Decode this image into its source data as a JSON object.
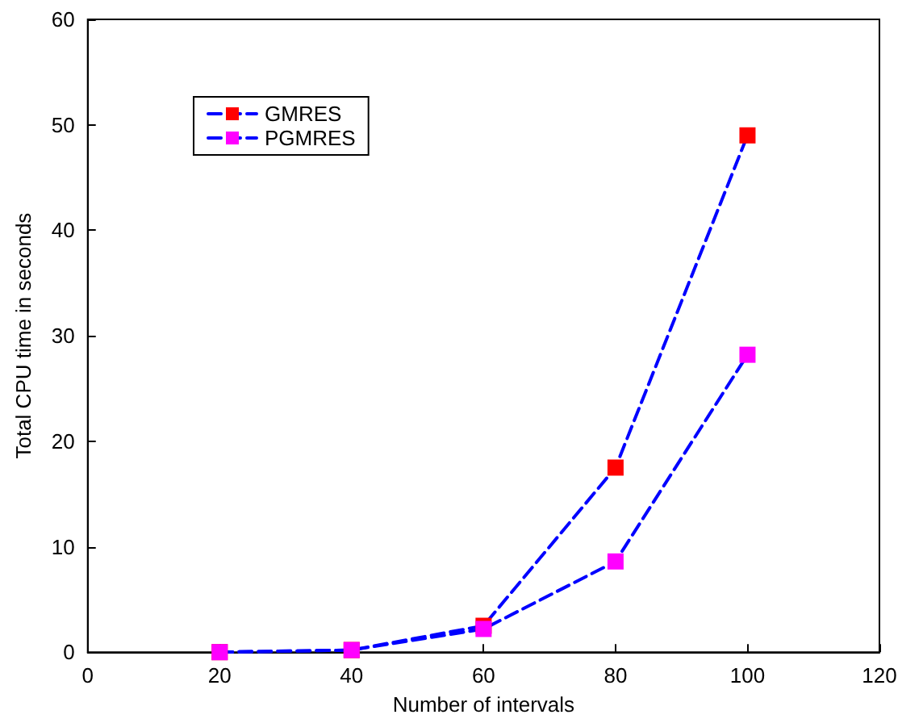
{
  "chart_data": {
    "type": "line",
    "xlabel": "Number of intervals",
    "ylabel": "Total CPU time in seconds",
    "x": [
      20,
      40,
      60,
      80,
      100
    ],
    "series": [
      {
        "name": "GMRES",
        "color": "#ff0000",
        "values": [
          0,
          0.2,
          2.5,
          17.5,
          49
        ]
      },
      {
        "name": "PGMRES",
        "color": "#ff00ff",
        "values": [
          0,
          0.2,
          2.2,
          8.6,
          28.2
        ]
      }
    ],
    "xlim": [
      0,
      120
    ],
    "xticks": [
      0,
      20,
      40,
      60,
      80,
      100,
      120
    ],
    "ylim": [
      0,
      60
    ],
    "yticks": [
      0,
      10,
      20,
      30,
      40,
      50,
      60
    ],
    "grid": false,
    "legend": "top left",
    "marker": "square",
    "line_style": "dashed"
  }
}
